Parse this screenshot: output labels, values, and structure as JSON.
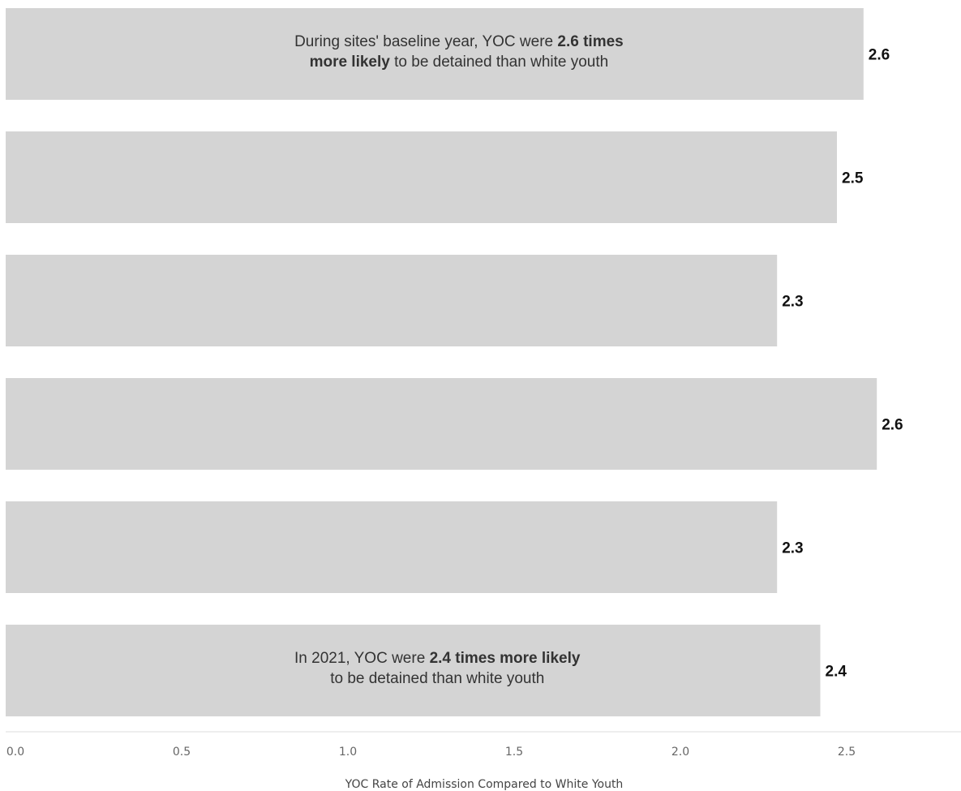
{
  "chart_data": {
    "type": "bar",
    "orientation": "horizontal",
    "categories": [
      "",
      "",
      "",
      "",
      "",
      ""
    ],
    "values": [
      2.6,
      2.5,
      2.3,
      2.6,
      2.3,
      2.4
    ],
    "bar_lengths": [
      2.58,
      2.5,
      2.32,
      2.62,
      2.32,
      2.45
    ],
    "value_labels": [
      "2.6",
      "2.5",
      "2.3",
      "2.6",
      "2.3",
      "2.4"
    ],
    "xlim": [
      0,
      2.85
    ],
    "xticks": [
      "0.0",
      "0.5",
      "1.0",
      "1.5",
      "2.0",
      "2.5"
    ],
    "xlabel": "YOC Rate of Admission Compared to White Youth",
    "bar_color": "#d4d4d4",
    "grid": false,
    "annotations": [
      {
        "bar": 0,
        "line1_parts": [
          {
            "text": "During sites' baseline year, YOC were ",
            "bold": false
          },
          {
            "text": "2.6 times",
            "bold": true
          }
        ],
        "line2_parts": [
          {
            "text": "more likely",
            "bold": true
          },
          {
            "text": " to be detained than white youth",
            "bold": false
          }
        ]
      },
      {
        "bar": 5,
        "line1_parts": [
          {
            "text": "In 2021, YOC were ",
            "bold": false
          },
          {
            "text": "2.4 times more likely",
            "bold": true
          }
        ],
        "line2_parts": [
          {
            "text": "to be detained than white youth",
            "bold": false
          }
        ]
      }
    ]
  }
}
